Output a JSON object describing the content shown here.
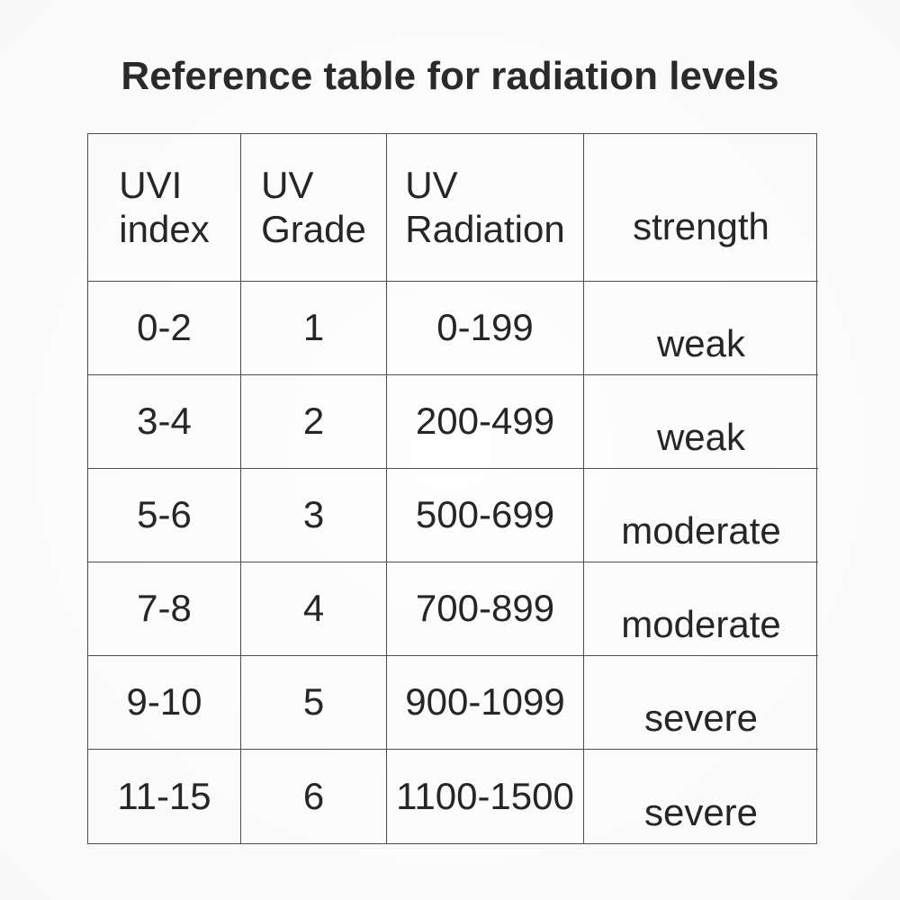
{
  "title": "Reference table for radiation levels",
  "table": {
    "headers": [
      {
        "line1": "UVI",
        "line2": "index"
      },
      {
        "line1": "UV",
        "line2": "Grade"
      },
      {
        "line1": "UV",
        "line2": "Radiation"
      },
      {
        "line1": "strength"
      }
    ],
    "rows": [
      {
        "uvi_index": "0-2",
        "uv_grade": "1",
        "uv_radiation": "0-199",
        "strength": "weak"
      },
      {
        "uvi_index": "3-4",
        "uv_grade": "2",
        "uv_radiation": "200-499",
        "strength": "weak"
      },
      {
        "uvi_index": "5-6",
        "uv_grade": "3",
        "uv_radiation": "500-699",
        "strength": "moderate"
      },
      {
        "uvi_index": "7-8",
        "uv_grade": "4",
        "uv_radiation": "700-899",
        "strength": "moderate"
      },
      {
        "uvi_index": "9-10",
        "uv_grade": "5",
        "uv_radiation": "900-1099",
        "strength": "severe"
      },
      {
        "uvi_index": "11-15",
        "uv_grade": "6",
        "uv_radiation": "1100-1500",
        "strength": "severe"
      }
    ]
  },
  "colors": {
    "text": "#262626",
    "border": "#4d4d4d",
    "background": "#fcfcfc"
  }
}
